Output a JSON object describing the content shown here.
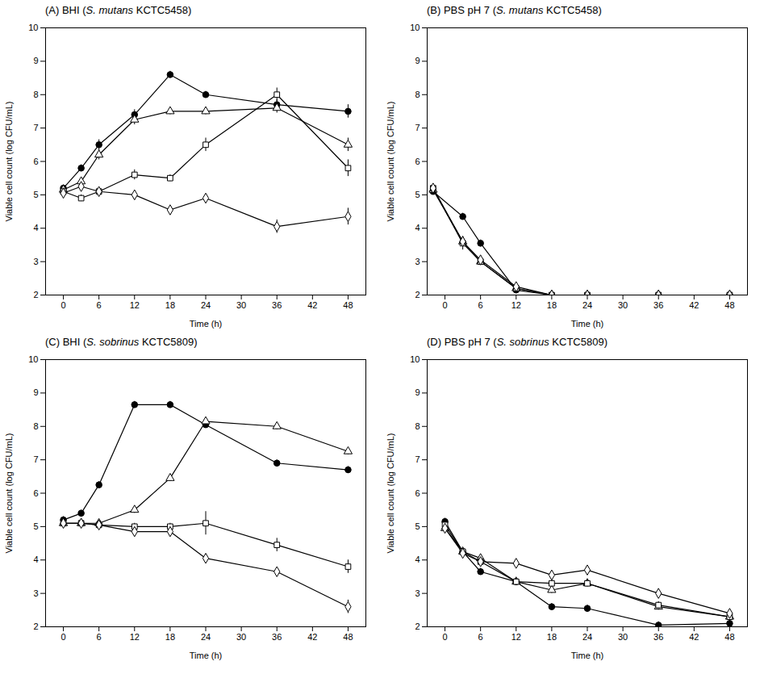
{
  "chart_data": [
    {
      "type": "line",
      "title": "(A) BHI (S. mutans KCTC5458)",
      "xlabel": "Time (h)",
      "ylabel": "Viable cell count (log CFU/mL)",
      "x": [
        0,
        3,
        6,
        12,
        18,
        24,
        36,
        48
      ],
      "xlim": [
        -3,
        51
      ],
      "xticks": [
        0,
        6,
        12,
        18,
        24,
        30,
        36,
        42,
        48
      ],
      "ylim": [
        2,
        10
      ],
      "yticks": [
        2,
        3,
        4,
        5,
        6,
        7,
        8,
        9,
        10
      ],
      "grid": false,
      "series": [
        {
          "marker": "circle",
          "values": [
            5.2,
            5.8,
            6.5,
            7.4,
            8.6,
            8.0,
            7.7,
            7.5
          ],
          "yerr": [
            0.1,
            0.1,
            0.15,
            0.15,
            0.1,
            0.1,
            0.15,
            0.2
          ]
        },
        {
          "marker": "triangle-open",
          "values": [
            5.15,
            5.4,
            6.2,
            7.25,
            7.5,
            7.5,
            7.6,
            6.5
          ],
          "yerr": [
            0.1,
            0.1,
            0.15,
            0.15,
            0.1,
            0.1,
            0.15,
            0.2
          ]
        },
        {
          "marker": "square-open",
          "values": [
            5.1,
            4.9,
            5.1,
            5.6,
            5.5,
            6.5,
            8.0,
            5.8
          ],
          "yerr": [
            0.1,
            0.1,
            0.1,
            0.15,
            0.1,
            0.2,
            0.2,
            0.25
          ]
        },
        {
          "marker": "diamond-open",
          "values": [
            5.05,
            5.25,
            5.1,
            5.0,
            4.55,
            4.9,
            4.05,
            4.35
          ],
          "yerr": [
            0.1,
            0.1,
            0.1,
            0.1,
            0.1,
            0.1,
            0.2,
            0.25
          ]
        }
      ]
    },
    {
      "type": "line",
      "title": "(B) PBS pH 7 (S. mutans KCTC5458)",
      "xlabel": "Time (h)",
      "ylabel": "Viable cell count (log CFU/mL)",
      "x": [
        -2,
        3,
        6,
        12,
        18,
        24,
        36,
        48
      ],
      "xlim": [
        -3,
        51
      ],
      "xticks": [
        0,
        6,
        12,
        18,
        24,
        30,
        36,
        42,
        48
      ],
      "ylim": [
        2,
        10
      ],
      "yticks": [
        2,
        3,
        4,
        5,
        6,
        7,
        8,
        9,
        10
      ],
      "grid": false,
      "series": [
        {
          "marker": "circle",
          "values": [
            5.1,
            4.35,
            3.55,
            2.15,
            2.0,
            2.0,
            2.0,
            2.0
          ],
          "yerr": [
            0.1,
            0.1,
            0.1,
            0.1,
            0.0,
            0.0,
            0.0,
            0.0
          ]
        },
        {
          "marker": "triangle-open",
          "values": [
            5.15,
            3.6,
            3.0,
            2.2,
            2.0,
            2.0,
            2.0,
            2.0
          ],
          "yerr": [
            0.1,
            0.15,
            0.1,
            0.1,
            0.0,
            0.0,
            0.0,
            0.0
          ]
        },
        {
          "marker": "square-open",
          "values": [
            5.2,
            3.55,
            3.0,
            2.2,
            2.0,
            2.0,
            2.0,
            2.0
          ],
          "yerr": [
            0.1,
            0.2,
            0.1,
            0.1,
            0.0,
            0.0,
            0.0,
            0.0
          ]
        },
        {
          "marker": "diamond-open",
          "values": [
            5.2,
            3.6,
            3.05,
            2.25,
            2.0,
            2.0,
            2.0,
            2.0
          ],
          "yerr": [
            0.1,
            0.15,
            0.1,
            0.1,
            0.0,
            0.0,
            0.0,
            0.0
          ]
        }
      ]
    },
    {
      "type": "line",
      "title": "(C) BHI (S. sobrinus KCTC5809)",
      "xlabel": "Time (h)",
      "ylabel": "Viable cell count (log CFU/mL)",
      "x": [
        0,
        3,
        6,
        12,
        18,
        24,
        36,
        48
      ],
      "xlim": [
        -3,
        51
      ],
      "xticks": [
        0,
        6,
        12,
        18,
        24,
        30,
        36,
        42,
        48
      ],
      "ylim": [
        2,
        10
      ],
      "yticks": [
        2,
        3,
        4,
        5,
        6,
        7,
        8,
        9,
        10
      ],
      "grid": false,
      "series": [
        {
          "marker": "circle",
          "values": [
            5.2,
            5.4,
            6.25,
            8.65,
            8.65,
            8.05,
            6.9,
            6.7
          ],
          "yerr": [
            0.1,
            0.1,
            0.1,
            0.1,
            0.1,
            0.1,
            0.1,
            0.1
          ]
        },
        {
          "marker": "triangle-open",
          "values": [
            5.1,
            5.1,
            5.1,
            5.5,
            6.45,
            8.15,
            8.0,
            7.25
          ],
          "yerr": [
            0.1,
            0.1,
            0.1,
            0.1,
            0.1,
            0.1,
            0.1,
            0.1
          ]
        },
        {
          "marker": "square-open",
          "values": [
            5.1,
            5.1,
            5.05,
            5.0,
            5.0,
            5.1,
            4.45,
            3.8
          ],
          "yerr": [
            0.1,
            0.1,
            0.1,
            0.1,
            0.1,
            0.35,
            0.2,
            0.2
          ]
        },
        {
          "marker": "diamond-open",
          "values": [
            5.1,
            5.1,
            5.05,
            4.85,
            4.85,
            4.05,
            3.65,
            2.6
          ],
          "yerr": [
            0.1,
            0.1,
            0.1,
            0.1,
            0.1,
            0.1,
            0.1,
            0.2
          ]
        }
      ]
    },
    {
      "type": "line",
      "title": "(D) PBS pH 7 (S. sobrinus KCTC5809)",
      "xlabel": "Time (h)",
      "ylabel": "Viable cell count (log CFU/mL)",
      "x": [
        0,
        3,
        6,
        12,
        18,
        24,
        36,
        48
      ],
      "xlim": [
        -3,
        51
      ],
      "xticks": [
        0,
        6,
        12,
        18,
        24,
        30,
        36,
        42,
        48
      ],
      "ylim": [
        2,
        10
      ],
      "yticks": [
        2,
        3,
        4,
        5,
        6,
        7,
        8,
        9,
        10
      ],
      "grid": false,
      "series": [
        {
          "marker": "circle",
          "values": [
            5.15,
            4.25,
            3.65,
            3.35,
            2.6,
            2.55,
            2.05,
            2.1
          ],
          "yerr": [
            0.1,
            0.1,
            0.1,
            0.1,
            0.1,
            0.1,
            0.1,
            0.1
          ]
        },
        {
          "marker": "triangle-open",
          "values": [
            4.95,
            4.25,
            4.05,
            3.35,
            3.1,
            3.3,
            2.6,
            2.3
          ],
          "yerr": [
            0.1,
            0.1,
            0.1,
            0.1,
            0.1,
            0.1,
            0.1,
            0.1
          ]
        },
        {
          "marker": "square-open",
          "values": [
            5.05,
            4.25,
            3.95,
            3.35,
            3.3,
            3.3,
            2.65,
            2.3
          ],
          "yerr": [
            0.1,
            0.1,
            0.1,
            0.1,
            0.1,
            0.1,
            0.1,
            0.1
          ]
        },
        {
          "marker": "diamond-open",
          "values": [
            4.95,
            4.2,
            3.95,
            3.9,
            3.55,
            3.7,
            3.0,
            2.4
          ],
          "yerr": [
            0.1,
            0.1,
            0.1,
            0.1,
            0.1,
            0.1,
            0.1,
            0.1
          ]
        }
      ]
    }
  ]
}
